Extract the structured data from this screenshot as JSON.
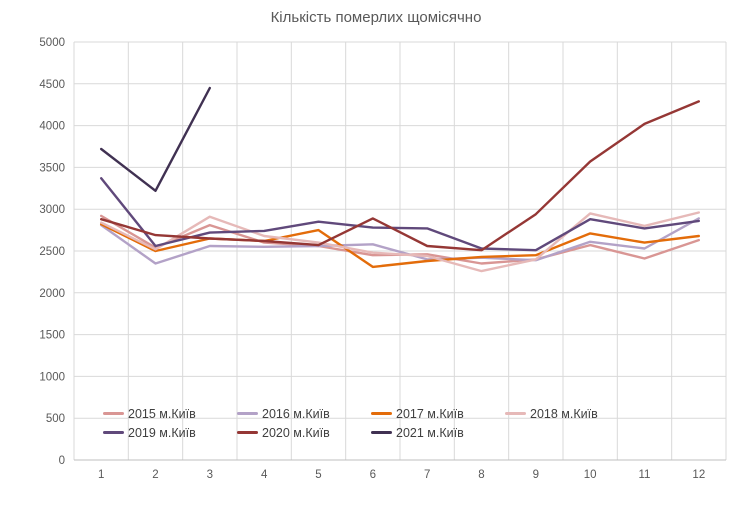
{
  "chart_data": {
    "type": "line",
    "title": "Кількість померлих щомісячно",
    "categories": [
      "1",
      "2",
      "3",
      "4",
      "5",
      "6",
      "7",
      "8",
      "9",
      "10",
      "11",
      "12"
    ],
    "ytick_labels": [
      "0",
      "500",
      "1000",
      "1500",
      "2000",
      "2500",
      "3000",
      "3500",
      "4000",
      "4500",
      "5000"
    ],
    "ylim": [
      0,
      5000
    ],
    "ytick_step": 500,
    "grid": true,
    "legend_position": "bottom-inside-two-rows",
    "series": [
      {
        "name": "2015 м.Київ",
        "color": "#D99694",
        "values": [
          2920,
          2540,
          2810,
          2600,
          2560,
          2450,
          2460,
          2350,
          2400,
          2570,
          2410,
          2630
        ]
      },
      {
        "name": "2016 м.Київ",
        "color": "#B3A2C7",
        "values": [
          2810,
          2350,
          2560,
          2550,
          2560,
          2580,
          2400,
          2420,
          2390,
          2610,
          2530,
          2890
        ]
      },
      {
        "name": "2017 м.Київ",
        "color": "#E36C0A",
        "values": [
          2820,
          2500,
          2650,
          2620,
          2750,
          2310,
          2380,
          2430,
          2450,
          2710,
          2600,
          2680
        ]
      },
      {
        "name": "2018 м.Київ",
        "color": "#E6B9B8",
        "values": [
          2840,
          2520,
          2910,
          2680,
          2600,
          2480,
          2440,
          2260,
          2400,
          2950,
          2800,
          2960
        ]
      },
      {
        "name": "2019 м.Київ",
        "color": "#60497B",
        "values": [
          3370,
          2560,
          2720,
          2740,
          2850,
          2780,
          2770,
          2530,
          2510,
          2880,
          2770,
          2860
        ]
      },
      {
        "name": "2020 м.Київ",
        "color": "#953735",
        "values": [
          2880,
          2690,
          2650,
          2620,
          2570,
          2890,
          2560,
          2510,
          2940,
          3570,
          4020,
          4290
        ]
      },
      {
        "name": "2021 м.Київ",
        "color": "#403152",
        "values": [
          3720,
          3220,
          4450,
          null,
          null,
          null,
          null,
          null,
          null,
          null,
          null,
          null
        ]
      }
    ],
    "colors": {
      "background": "#FFFFFF",
      "grid": "#D9D9D9",
      "axis": "#BFBFBF",
      "tick_label": "#595959",
      "title": "#595959",
      "legend_label": "#404040"
    }
  }
}
